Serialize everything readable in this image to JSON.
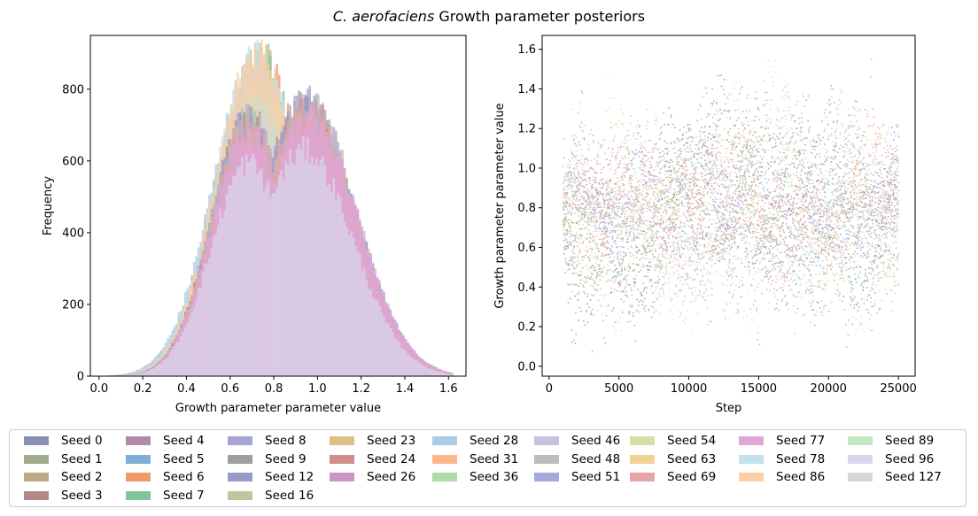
{
  "title": {
    "species": "C. aerofaciens",
    "rest": "Growth parameter posteriors"
  },
  "chart_data": [
    {
      "type": "histogram",
      "xlabel": "Growth parameter parameter value",
      "ylabel": "Frequency",
      "xlim": [
        -0.04,
        1.68
      ],
      "ylim": [
        0,
        950
      ],
      "xticks": [
        "0.0",
        "0.2",
        "0.4",
        "0.6",
        "0.8",
        "1.0",
        "1.2",
        "1.4",
        "1.6"
      ],
      "yticks": [
        "0",
        "200",
        "400",
        "600",
        "800"
      ],
      "series_groups": [
        {
          "description": "seeds peaking near 0.72",
          "peak_x": 0.72,
          "peak_y": 880,
          "spread": 0.19,
          "seeds": [
            "Seed 1",
            "Seed 5",
            "Seed 6",
            "Seed 7",
            "Seed 16",
            "Seed 23",
            "Seed 28",
            "Seed 31",
            "Seed 36",
            "Seed 54",
            "Seed 63",
            "Seed 78",
            "Seed 86",
            "Seed 89",
            "Seed 127"
          ]
        },
        {
          "description": "seeds with broad bimodal shape, second mode near 0.95",
          "peak_x": 0.95,
          "peak_y": 740,
          "spread": 0.22,
          "seeds": [
            "Seed 0",
            "Seed 2",
            "Seed 3",
            "Seed 4",
            "Seed 8",
            "Seed 9",
            "Seed 12",
            "Seed 24",
            "Seed 26",
            "Seed 46",
            "Seed 48",
            "Seed 51",
            "Seed 69",
            "Seed 77",
            "Seed 96"
          ]
        }
      ]
    },
    {
      "type": "scatter",
      "xlabel": "Step",
      "ylabel": "Growth parameter parameter value",
      "xlim": [
        -500,
        26200
      ],
      "ylim": [
        -0.05,
        1.67
      ],
      "xticks": [
        "0",
        "5000",
        "10000",
        "15000",
        "20000",
        "25000"
      ],
      "yticks": [
        "0.0",
        "0.2",
        "0.4",
        "0.6",
        "0.8",
        "1.0",
        "1.2",
        "1.4",
        "1.6"
      ],
      "x_range": [
        1000,
        25000
      ],
      "y_range": [
        0.05,
        1.6
      ],
      "y_center": 0.78
    }
  ],
  "legend": [
    {
      "label": "Seed 0",
      "color": "#8a8fb4"
    },
    {
      "label": "Seed 1",
      "color": "#a0ad88"
    },
    {
      "label": "Seed 2",
      "color": "#bcaa86"
    },
    {
      "label": "Seed 3",
      "color": "#b48886"
    },
    {
      "label": "Seed 4",
      "color": "#b08aa8"
    },
    {
      "label": "Seed 5",
      "color": "#7fadd8"
    },
    {
      "label": "Seed 6",
      "color": "#f0996b"
    },
    {
      "label": "Seed 7",
      "color": "#80c69a"
    },
    {
      "label": "Seed 8",
      "color": "#a7a4d6"
    },
    {
      "label": "Seed 9",
      "color": "#9f9f9f"
    },
    {
      "label": "Seed 12",
      "color": "#9999cb"
    },
    {
      "label": "Seed 16",
      "color": "#bcc79e"
    },
    {
      "label": "Seed 23",
      "color": "#dbc186"
    },
    {
      "label": "Seed 24",
      "color": "#cc8f8c"
    },
    {
      "label": "Seed 26",
      "color": "#c995c4"
    },
    {
      "label": "Seed 28",
      "color": "#a8cde6"
    },
    {
      "label": "Seed 31",
      "color": "#fdb686"
    },
    {
      "label": "Seed 36",
      "color": "#addaa9"
    },
    {
      "label": "Seed 46",
      "color": "#c6c3e0"
    },
    {
      "label": "Seed 48",
      "color": "#bdbdbd"
    },
    {
      "label": "Seed 51",
      "color": "#a6a8de"
    },
    {
      "label": "Seed 54",
      "color": "#d3e0a6"
    },
    {
      "label": "Seed 63",
      "color": "#efd295"
    },
    {
      "label": "Seed 69",
      "color": "#e8a4a6"
    },
    {
      "label": "Seed 77",
      "color": "#e1a6d8"
    },
    {
      "label": "Seed 78",
      "color": "#c3e0ed"
    },
    {
      "label": "Seed 86",
      "color": "#fdcfa3"
    },
    {
      "label": "Seed 89",
      "color": "#c4e7c1"
    },
    {
      "label": "Seed 96",
      "color": "#d9d7ec"
    },
    {
      "label": "Seed 127",
      "color": "#d6d6d6"
    }
  ]
}
